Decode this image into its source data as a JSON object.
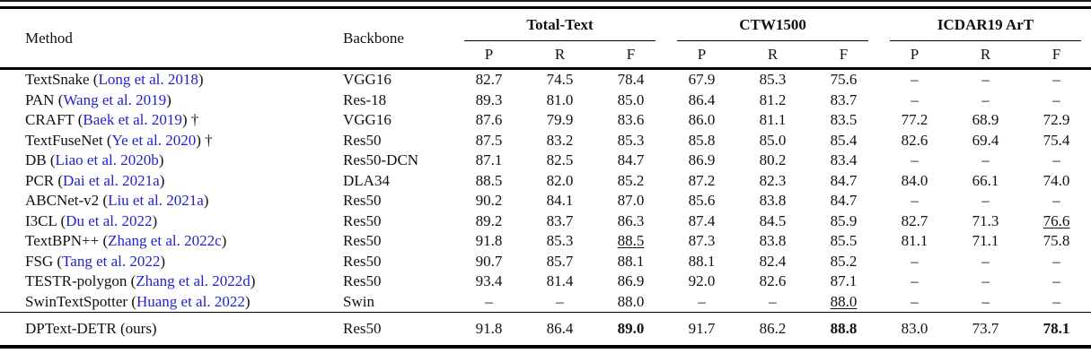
{
  "colors": {
    "citation_blue": "#2222CC",
    "text": "#111111"
  },
  "header": {
    "method": "Method",
    "backbone": "Backbone",
    "groups": [
      "Total-Text",
      "CTW1500",
      "ICDAR19 ArT"
    ],
    "metrics": [
      "P",
      "R",
      "F"
    ]
  },
  "rows": [
    {
      "pre": "TextSnake (",
      "cite": "Long et al. 2018",
      "post": ")",
      "backbone": "VGG16",
      "values": [
        "82.7",
        "74.5",
        "78.4",
        "67.9",
        "85.3",
        "75.6",
        "–",
        "–",
        "–"
      ],
      "marks": [
        "",
        "",
        "",
        "",
        "",
        "",
        "",
        "",
        ""
      ],
      "final": false
    },
    {
      "pre": "PAN (",
      "cite": "Wang et al. 2019",
      "post": ")",
      "backbone": "Res-18",
      "values": [
        "89.3",
        "81.0",
        "85.0",
        "86.4",
        "81.2",
        "83.7",
        "–",
        "–",
        "–"
      ],
      "marks": [
        "",
        "",
        "",
        "",
        "",
        "",
        "",
        "",
        ""
      ],
      "final": false
    },
    {
      "pre": "CRAFT (",
      "cite": "Baek et al. 2019",
      "post": ") †",
      "backbone": "VGG16",
      "values": [
        "87.6",
        "79.9",
        "83.6",
        "86.0",
        "81.1",
        "83.5",
        "77.2",
        "68.9",
        "72.9"
      ],
      "marks": [
        "",
        "",
        "",
        "",
        "",
        "",
        "",
        "",
        ""
      ],
      "final": false
    },
    {
      "pre": "TextFuseNet (",
      "cite": "Ye et al. 2020",
      "post": ") †",
      "backbone": "Res50",
      "values": [
        "87.5",
        "83.2",
        "85.3",
        "85.8",
        "85.0",
        "85.4",
        "82.6",
        "69.4",
        "75.4"
      ],
      "marks": [
        "",
        "",
        "",
        "",
        "",
        "",
        "",
        "",
        ""
      ],
      "final": false
    },
    {
      "pre": "DB (",
      "cite": "Liao et al. 2020b",
      "post": ")",
      "backbone": "Res50-DCN",
      "values": [
        "87.1",
        "82.5",
        "84.7",
        "86.9",
        "80.2",
        "83.4",
        "–",
        "–",
        "–"
      ],
      "marks": [
        "",
        "",
        "",
        "",
        "",
        "",
        "",
        "",
        ""
      ],
      "final": false
    },
    {
      "pre": "PCR (",
      "cite": "Dai et al. 2021a",
      "post": ")",
      "backbone": "DLA34",
      "values": [
        "88.5",
        "82.0",
        "85.2",
        "87.2",
        "82.3",
        "84.7",
        "84.0",
        "66.1",
        "74.0"
      ],
      "marks": [
        "",
        "",
        "",
        "",
        "",
        "",
        "",
        "",
        ""
      ],
      "final": false
    },
    {
      "pre": "ABCNet-v2 (",
      "cite": "Liu et al. 2021a",
      "post": ")",
      "backbone": "Res50",
      "values": [
        "90.2",
        "84.1",
        "87.0",
        "85.6",
        "83.8",
        "84.7",
        "–",
        "–",
        "–"
      ],
      "marks": [
        "",
        "",
        "",
        "",
        "",
        "",
        "",
        "",
        ""
      ],
      "final": false
    },
    {
      "pre": "I3CL (",
      "cite": "Du et al. 2022",
      "post": ")",
      "backbone": "Res50",
      "values": [
        "89.2",
        "83.7",
        "86.3",
        "87.4",
        "84.5",
        "85.9",
        "82.7",
        "71.3",
        "76.6"
      ],
      "marks": [
        "",
        "",
        "",
        "",
        "",
        "",
        "",
        "",
        "u"
      ],
      "final": false
    },
    {
      "pre": "TextBPN++ (",
      "cite": "Zhang et al. 2022c",
      "post": ")",
      "backbone": "Res50",
      "values": [
        "91.8",
        "85.3",
        "88.5",
        "87.3",
        "83.8",
        "85.5",
        "81.1",
        "71.1",
        "75.8"
      ],
      "marks": [
        "",
        "",
        "u",
        "",
        "",
        "",
        "",
        "",
        ""
      ],
      "final": false
    },
    {
      "pre": "FSG (",
      "cite": "Tang et al. 2022",
      "post": ")",
      "backbone": "Res50",
      "values": [
        "90.7",
        "85.7",
        "88.1",
        "88.1",
        "82.4",
        "85.2",
        "–",
        "–",
        "–"
      ],
      "marks": [
        "",
        "",
        "",
        "",
        "",
        "",
        "",
        "",
        ""
      ],
      "final": false
    },
    {
      "pre": "TESTR-polygon (",
      "cite": "Zhang et al. 2022d",
      "post": ")",
      "backbone": "Res50",
      "values": [
        "93.4",
        "81.4",
        "86.9",
        "92.0",
        "82.6",
        "87.1",
        "–",
        "–",
        "–"
      ],
      "marks": [
        "",
        "",
        "",
        "",
        "",
        "",
        "",
        "",
        ""
      ],
      "final": false
    },
    {
      "pre": "SwinTextSpotter (",
      "cite": "Huang et al. 2022",
      "post": ")",
      "backbone": "Swin",
      "values": [
        "–",
        "–",
        "88.0",
        "–",
        "–",
        "88.0",
        "–",
        "–",
        "–"
      ],
      "marks": [
        "",
        "",
        "",
        "",
        "",
        "u",
        "",
        "",
        ""
      ],
      "final": false
    },
    {
      "pre": "DPText-DETR (ours)",
      "cite": "",
      "post": "",
      "backbone": "Res50",
      "values": [
        "91.8",
        "86.4",
        "89.0",
        "91.7",
        "86.2",
        "88.8",
        "83.0",
        "73.7",
        "78.1"
      ],
      "marks": [
        "",
        "",
        "b",
        "",
        "",
        "b",
        "",
        "",
        "b"
      ],
      "final": true
    }
  ]
}
